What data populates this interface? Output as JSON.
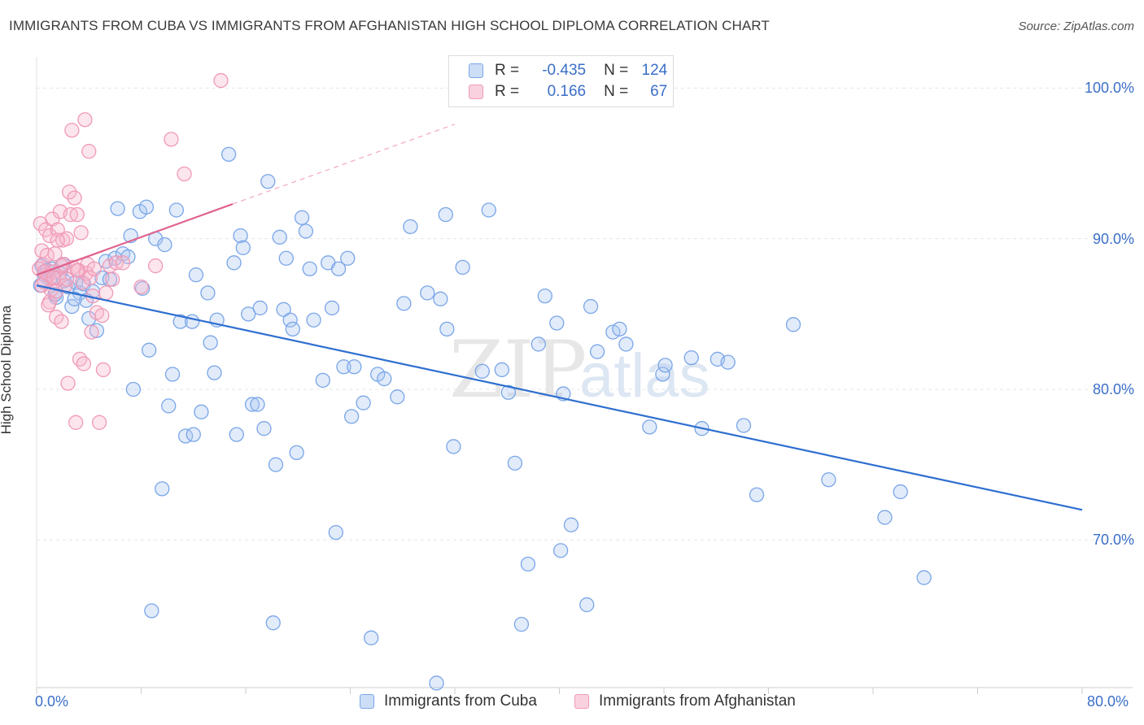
{
  "header": {
    "title": "IMMIGRANTS FROM CUBA VS IMMIGRANTS FROM AFGHANISTAN HIGH SCHOOL DIPLOMA CORRELATION CHART",
    "source": "Source: ZipAtlas.com"
  },
  "watermark": {
    "zip": "ZIP",
    "atlas": "atlas"
  },
  "legend_top": {
    "rows": [
      {
        "r_label": "R =",
        "r_value": "-0.435",
        "n_label": "N =",
        "n_value": "124"
      },
      {
        "r_label": "R =",
        "r_value": "0.166",
        "n_label": "N =",
        "n_value": "67"
      }
    ]
  },
  "colors": {
    "cuba": "#7aa6e8",
    "cuba_fill": "rgba(170,198,240,0.35)",
    "cuba_line": "#2e6fd0",
    "afghanistan": "#f09ab6",
    "afghanistan_fill": "rgba(246,180,202,0.35)",
    "afghanistan_line": "#e0608c",
    "tick_label": "#3b6fc8",
    "grid": "#e6e6e6"
  },
  "chart_data": {
    "type": "scatter",
    "title": "IMMIGRANTS FROM CUBA VS IMMIGRANTS FROM AFGHANISTAN HIGH SCHOOL DIPLOMA CORRELATION CHART",
    "xlabel": "",
    "ylabel": "High School Diploma",
    "xlim": [
      0,
      80
    ],
    "ylim": [
      60.2,
      102.5
    ],
    "x_tick_labels": [
      "0.0%",
      "80.0%"
    ],
    "y_ticks": [
      70,
      80,
      90,
      100
    ],
    "y_tick_labels": [
      "70.0%",
      "80.0%",
      "90.0%",
      "100.0%"
    ],
    "grid": true,
    "legend_position": "bottom",
    "series": [
      {
        "name": "Immigrants from Cuba",
        "r": -0.435,
        "n": 124,
        "trend": {
          "x": [
            0,
            80
          ],
          "y": [
            86.9,
            72.0
          ]
        },
        "points": [
          [
            0.4,
            88.2
          ],
          [
            0.6,
            87.6
          ],
          [
            0.8,
            87.9
          ],
          [
            1.0,
            87.3
          ],
          [
            1.2,
            88.0
          ],
          [
            1.5,
            86.1
          ],
          [
            1.8,
            87.7
          ],
          [
            2.1,
            87.2
          ],
          [
            2.4,
            86.8
          ],
          [
            2.7,
            85.5
          ],
          [
            3.0,
            87.1
          ],
          [
            3.3,
            86.4
          ],
          [
            3.6,
            87.0
          ],
          [
            4.0,
            84.7
          ],
          [
            4.3,
            86.5
          ],
          [
            4.6,
            83.9
          ],
          [
            5.0,
            87.4
          ],
          [
            5.3,
            88.5
          ],
          [
            5.6,
            87.3
          ],
          [
            6.0,
            88.7
          ],
          [
            6.2,
            92.0
          ],
          [
            6.6,
            89.0
          ],
          [
            7.0,
            88.8
          ],
          [
            7.2,
            90.2
          ],
          [
            7.4,
            80.0
          ],
          [
            7.9,
            91.8
          ],
          [
            8.1,
            86.7
          ],
          [
            8.4,
            92.1
          ],
          [
            8.6,
            82.6
          ],
          [
            8.8,
            65.3
          ],
          [
            9.1,
            90.0
          ],
          [
            9.6,
            73.4
          ],
          [
            9.8,
            89.6
          ],
          [
            10.1,
            78.9
          ],
          [
            10.4,
            81.0
          ],
          [
            10.7,
            91.9
          ],
          [
            11.0,
            84.5
          ],
          [
            11.4,
            76.9
          ],
          [
            11.9,
            84.5
          ],
          [
            12.0,
            77.0
          ],
          [
            12.2,
            87.6
          ],
          [
            12.6,
            78.5
          ],
          [
            13.1,
            86.4
          ],
          [
            13.3,
            83.1
          ],
          [
            13.6,
            81.1
          ],
          [
            13.8,
            84.6
          ],
          [
            14.7,
            95.6
          ],
          [
            15.1,
            88.4
          ],
          [
            15.3,
            77.0
          ],
          [
            15.6,
            90.2
          ],
          [
            15.8,
            89.4
          ],
          [
            16.2,
            85.0
          ],
          [
            16.5,
            79.0
          ],
          [
            16.9,
            79.0
          ],
          [
            17.1,
            85.4
          ],
          [
            17.4,
            77.4
          ],
          [
            17.7,
            93.8
          ],
          [
            18.1,
            64.5
          ],
          [
            18.3,
            75.0
          ],
          [
            18.6,
            90.1
          ],
          [
            18.9,
            85.3
          ],
          [
            19.1,
            88.7
          ],
          [
            19.4,
            84.6
          ],
          [
            19.6,
            84.0
          ],
          [
            19.9,
            75.8
          ],
          [
            20.3,
            91.4
          ],
          [
            20.6,
            90.5
          ],
          [
            20.9,
            88.0
          ],
          [
            21.2,
            84.6
          ],
          [
            21.9,
            80.6
          ],
          [
            22.3,
            88.4
          ],
          [
            22.6,
            85.4
          ],
          [
            22.9,
            70.5
          ],
          [
            23.1,
            88.0
          ],
          [
            23.5,
            81.5
          ],
          [
            23.8,
            88.7
          ],
          [
            24.1,
            78.2
          ],
          [
            24.3,
            81.5
          ],
          [
            25.0,
            79.1
          ],
          [
            25.6,
            63.5
          ],
          [
            26.1,
            81.0
          ],
          [
            26.6,
            80.7
          ],
          [
            27.6,
            79.5
          ],
          [
            28.1,
            85.7
          ],
          [
            28.6,
            90.8
          ],
          [
            29.9,
            86.4
          ],
          [
            30.6,
            60.5
          ],
          [
            30.9,
            86.0
          ],
          [
            31.3,
            91.6
          ],
          [
            31.4,
            84.0
          ],
          [
            31.9,
            76.2
          ],
          [
            32.6,
            88.1
          ],
          [
            34.1,
            81.2
          ],
          [
            34.6,
            91.9
          ],
          [
            35.6,
            81.3
          ],
          [
            36.1,
            79.8
          ],
          [
            36.6,
            75.1
          ],
          [
            37.1,
            64.4
          ],
          [
            37.6,
            68.4
          ],
          [
            38.4,
            83.0
          ],
          [
            38.9,
            86.2
          ],
          [
            39.8,
            84.4
          ],
          [
            40.1,
            69.3
          ],
          [
            40.3,
            79.7
          ],
          [
            40.9,
            71.0
          ],
          [
            42.1,
            65.7
          ],
          [
            42.4,
            85.5
          ],
          [
            42.9,
            82.5
          ],
          [
            44.1,
            83.8
          ],
          [
            44.6,
            84.0
          ],
          [
            45.1,
            83.0
          ],
          [
            46.9,
            77.5
          ],
          [
            47.9,
            81.0
          ],
          [
            48.1,
            81.6
          ],
          [
            50.1,
            82.1
          ],
          [
            50.9,
            77.4
          ],
          [
            52.1,
            82.0
          ],
          [
            52.9,
            81.8
          ],
          [
            54.1,
            77.6
          ],
          [
            55.1,
            73.0
          ],
          [
            57.9,
            84.3
          ],
          [
            60.6,
            74.0
          ],
          [
            64.9,
            71.5
          ],
          [
            66.1,
            73.2
          ],
          [
            67.9,
            67.5
          ],
          [
            1.4,
            86.3
          ],
          [
            2.0,
            88.3
          ],
          [
            3.8,
            85.9
          ],
          [
            0.3,
            86.9
          ],
          [
            2.9,
            86.0
          ]
        ]
      },
      {
        "name": "Immigrants from Afghanistan",
        "r": 0.166,
        "n": 67,
        "trend": {
          "x": [
            0,
            15
          ],
          "y": [
            87.6,
            92.3
          ]
        },
        "trend_extension": {
          "x": [
            15,
            32
          ],
          "y": [
            92.3,
            97.6
          ]
        },
        "points": [
          [
            0.3,
            91.0
          ],
          [
            0.4,
            89.2
          ],
          [
            0.5,
            88.3
          ],
          [
            0.6,
            87.1
          ],
          [
            0.7,
            90.6
          ],
          [
            0.8,
            88.9
          ],
          [
            0.9,
            87.6
          ],
          [
            1.0,
            90.2
          ],
          [
            1.0,
            85.8
          ],
          [
            1.1,
            86.6
          ],
          [
            1.2,
            91.3
          ],
          [
            1.3,
            87.8
          ],
          [
            1.4,
            89.0
          ],
          [
            1.5,
            86.5
          ],
          [
            1.5,
            84.8
          ],
          [
            1.6,
            90.6
          ],
          [
            1.7,
            87.4
          ],
          [
            1.8,
            91.8
          ],
          [
            1.9,
            84.5
          ],
          [
            2.0,
            89.9
          ],
          [
            2.1,
            88.3
          ],
          [
            2.2,
            86.9
          ],
          [
            2.3,
            90.0
          ],
          [
            2.4,
            80.4
          ],
          [
            2.5,
            93.1
          ],
          [
            2.6,
            91.6
          ],
          [
            2.7,
            97.2
          ],
          [
            2.8,
            88.1
          ],
          [
            2.9,
            92.7
          ],
          [
            3.0,
            77.8
          ],
          [
            3.1,
            91.6
          ],
          [
            3.2,
            87.9
          ],
          [
            3.3,
            82.0
          ],
          [
            3.4,
            90.4
          ],
          [
            3.5,
            87.1
          ],
          [
            3.6,
            81.7
          ],
          [
            3.7,
            97.9
          ],
          [
            3.8,
            87.7
          ],
          [
            3.9,
            88.3
          ],
          [
            4.0,
            95.8
          ],
          [
            4.1,
            87.4
          ],
          [
            4.2,
            83.8
          ],
          [
            4.3,
            86.2
          ],
          [
            4.4,
            88.0
          ],
          [
            4.6,
            85.1
          ],
          [
            4.8,
            77.8
          ],
          [
            5.0,
            84.9
          ],
          [
            5.1,
            81.3
          ],
          [
            5.3,
            86.4
          ],
          [
            5.6,
            88.2
          ],
          [
            5.8,
            87.3
          ],
          [
            6.1,
            88.4
          ],
          [
            6.6,
            88.4
          ],
          [
            8.0,
            86.8
          ],
          [
            9.1,
            88.2
          ],
          [
            10.3,
            96.6
          ],
          [
            11.3,
            94.3
          ],
          [
            14.1,
            100.5
          ],
          [
            0.2,
            88.0
          ],
          [
            0.6,
            87.8
          ],
          [
            1.3,
            87.4
          ],
          [
            1.9,
            88.2
          ],
          [
            2.3,
            87.3
          ],
          [
            3.1,
            87.9
          ],
          [
            0.9,
            85.6
          ],
          [
            1.6,
            89.9
          ],
          [
            0.4,
            86.9
          ]
        ]
      }
    ]
  },
  "bottom_legend": {
    "items": [
      {
        "label": "Immigrants from Cuba"
      },
      {
        "label": "Immigrants from Afghanistan"
      }
    ]
  }
}
